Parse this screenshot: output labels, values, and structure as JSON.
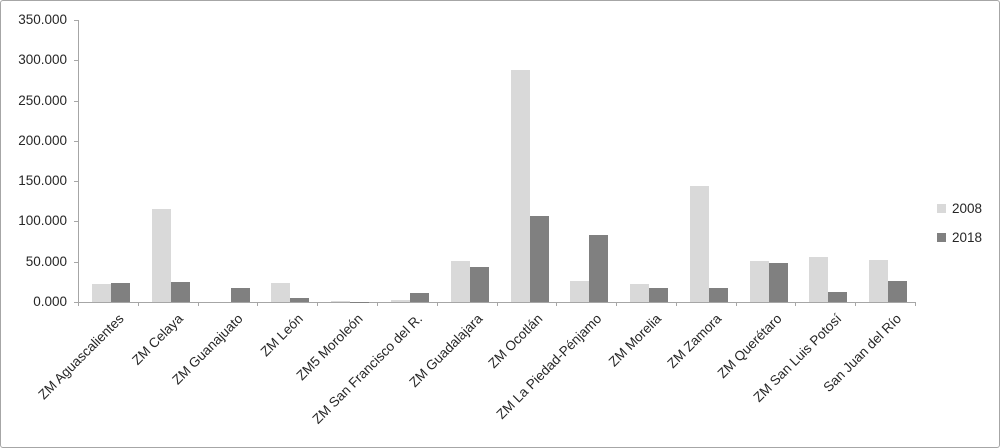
{
  "chart_data": {
    "type": "bar",
    "title": "",
    "xlabel": "",
    "ylabel": "",
    "categories": [
      "ZM Aguascalientes",
      "ZM Celaya",
      "ZM Guanajuato",
      "ZM León",
      "ZM5 Moroleón",
      "ZM San Francisco del R.",
      "ZM Guadalajara",
      "ZM Ocotlán",
      "ZM La Piedad-Pénjamo",
      "ZM Morelia",
      "ZM Zamora",
      "ZM Querétaro",
      "ZM San Luis Potosí",
      "San Juan del Río"
    ],
    "series": [
      {
        "name": "2008",
        "color": "#d9d9d9",
        "values": [
          22,
          115,
          0,
          24,
          1.5,
          3,
          51,
          288,
          26,
          22,
          144,
          51,
          56,
          52
        ]
      },
      {
        "name": "2018",
        "color": "#808080",
        "values": [
          24,
          25,
          17,
          5,
          0.6,
          11,
          43,
          107,
          83,
          17,
          17,
          48,
          13,
          26
        ]
      }
    ],
    "y_ticks": [
      "0.000",
      "50.000",
      "100.000",
      "150.000",
      "200.000",
      "250.000",
      "300.000",
      "350.000"
    ],
    "ylim": [
      0,
      350
    ],
    "y_tick_step": 50,
    "grid": false,
    "legend_position": "right"
  },
  "colors": {
    "axis": "#a6a6a6",
    "text": "#262626",
    "frame_border": "#a6a6a6",
    "background": "#ffffff"
  }
}
